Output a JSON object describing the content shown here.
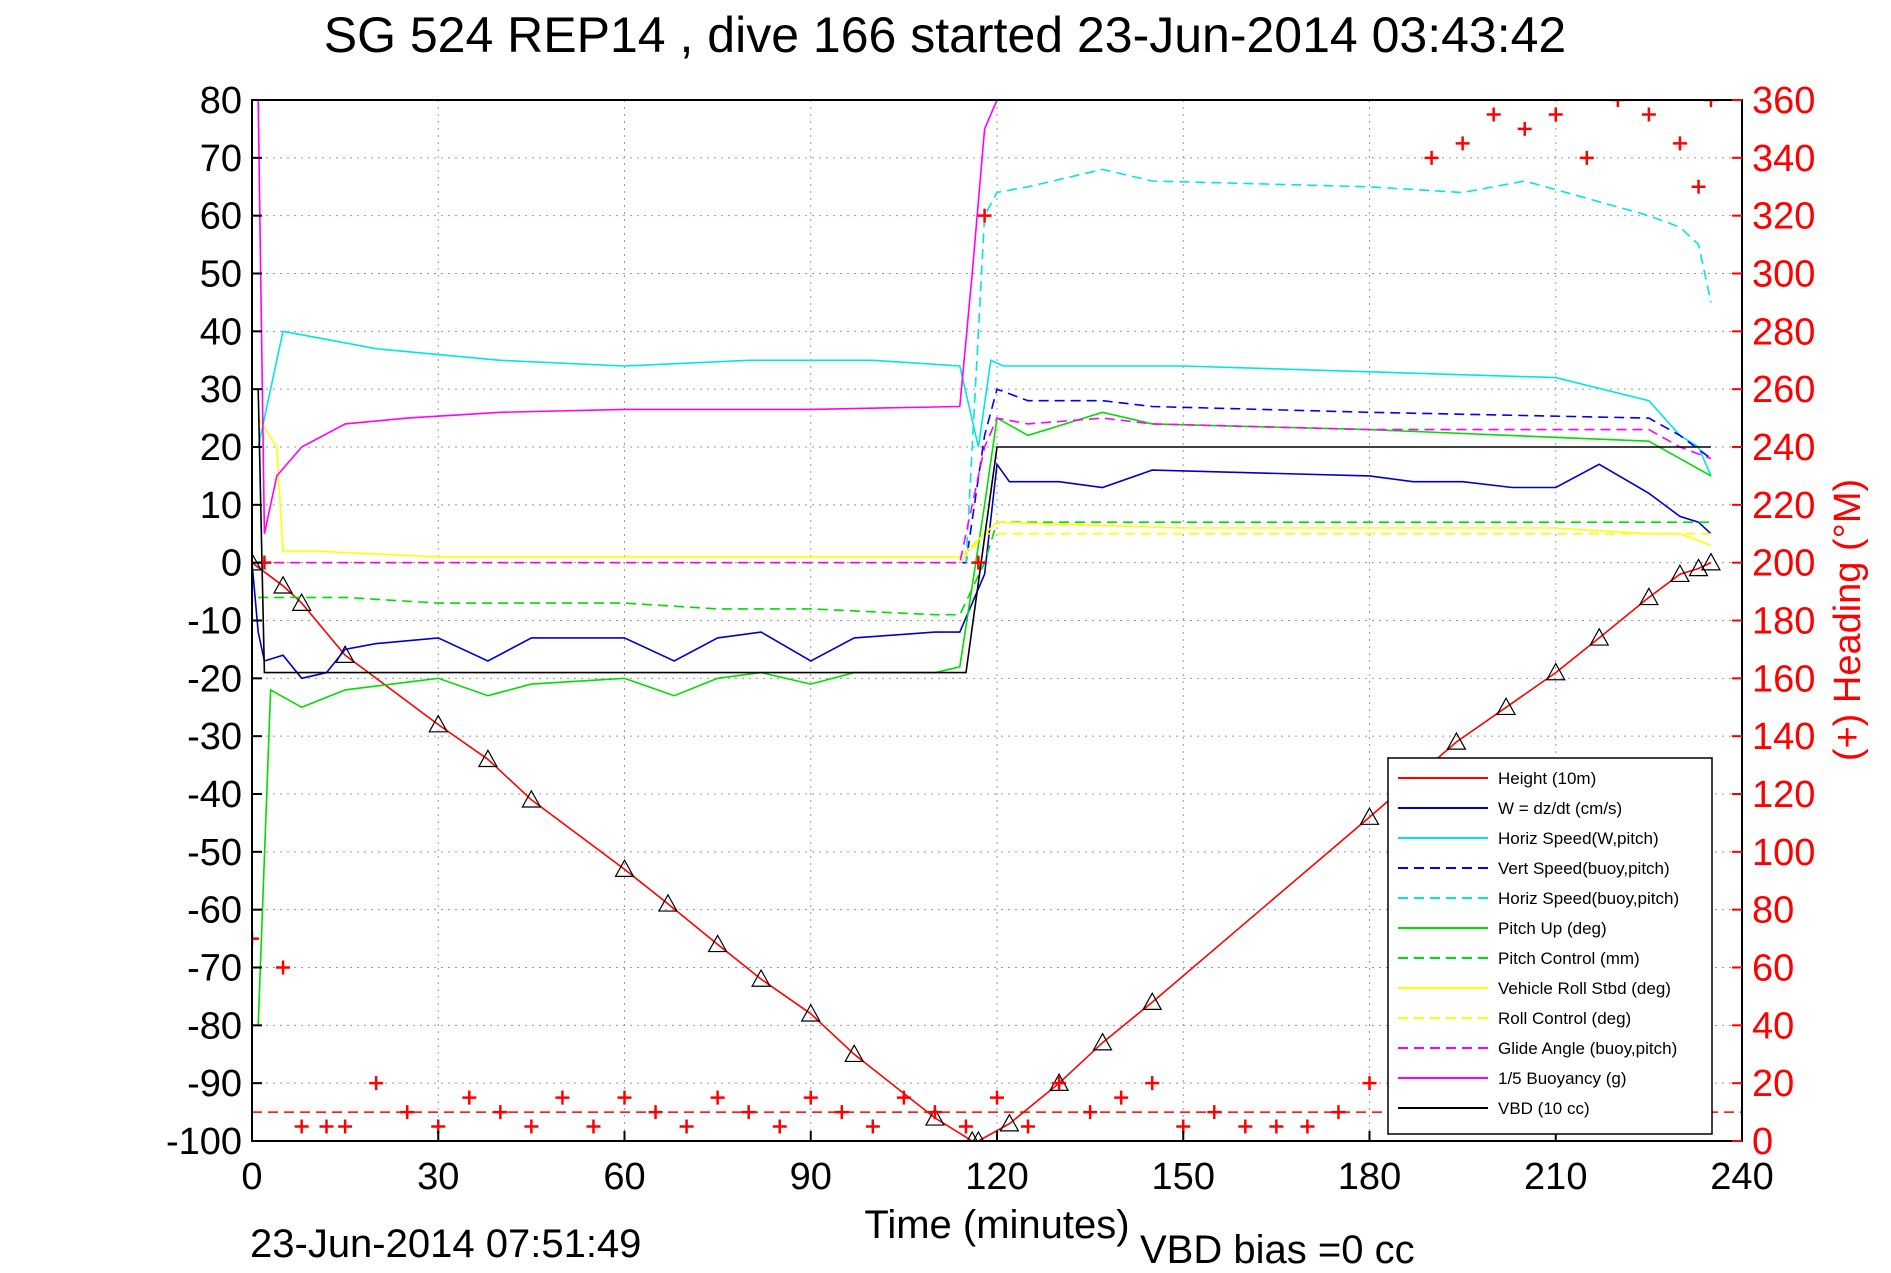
{
  "title": "SG 524   REP14  , dive 166 started 23-Jun-2014 03:43:42",
  "footer": {
    "timestamp": "23-Jun-2014 07:51:49",
    "vbd_bias": "VBD bias =0 cc"
  },
  "chart_data": {
    "type": "line",
    "title": "SG 524   REP14  , dive 166 started 23-Jun-2014 03:43:42",
    "xlabel": "Time (minutes)",
    "ylabel": "",
    "y2label": "(+) Heading (°M)",
    "xlim": [
      0,
      240
    ],
    "ylim": [
      -100,
      80
    ],
    "y2lim": [
      0,
      360
    ],
    "xticks": [
      0,
      30,
      60,
      90,
      120,
      150,
      180,
      210,
      240
    ],
    "yticks": [
      80,
      70,
      60,
      50,
      40,
      30,
      20,
      10,
      0,
      -10,
      -20,
      -30,
      -40,
      -50,
      -60,
      -70,
      -80,
      -90,
      -100
    ],
    "y2ticks": [
      360,
      340,
      320,
      300,
      280,
      260,
      240,
      220,
      200,
      180,
      160,
      140,
      120,
      100,
      80,
      60,
      40,
      20,
      0
    ],
    "grid": true,
    "legend_position": "bottom-right",
    "series": [
      {
        "name": "Height (10m)",
        "color": "#ff0000",
        "style": "solid",
        "marker": "triangle",
        "x": [
          0,
          5,
          8,
          15,
          30,
          38,
          45,
          60,
          67,
          75,
          82,
          90,
          97,
          110,
          116,
          117,
          122,
          130,
          137,
          145,
          180,
          194,
          202,
          210,
          217,
          225,
          230,
          233,
          235
        ],
        "y": [
          0,
          -4,
          -7,
          -16,
          -28,
          -34,
          -41,
          -53,
          -59,
          -66,
          -72,
          -78,
          -85,
          -96,
          -100,
          -100,
          -97,
          -90,
          -83,
          -76,
          -44,
          -31,
          -25,
          -19,
          -13,
          -6,
          -2,
          -1,
          0
        ]
      },
      {
        "name": "W = dz/dt (cm/s)",
        "color": "#0000cc",
        "style": "solid",
        "x": [
          0,
          1,
          2,
          5,
          8,
          12,
          15,
          20,
          30,
          38,
          45,
          60,
          68,
          75,
          82,
          90,
          97,
          110,
          114,
          118,
          120,
          122,
          130,
          137,
          145,
          180,
          187,
          195,
          203,
          210,
          217,
          225,
          230,
          233,
          235
        ],
        "y": [
          0,
          -12,
          -17,
          -16,
          -20,
          -19,
          -15,
          -14,
          -13,
          -17,
          -13,
          -13,
          -17,
          -13,
          -12,
          -17,
          -13,
          -12,
          -12,
          -2,
          17,
          14,
          14,
          13,
          16,
          15,
          14,
          14,
          13,
          13,
          17,
          12,
          8,
          7,
          5
        ]
      },
      {
        "name": "Horiz Speed(W,pitch)",
        "color": "#00e5e5",
        "style": "solid",
        "x": [
          1,
          5,
          20,
          40,
          60,
          80,
          100,
          114,
          117,
          119,
          121,
          130,
          150,
          180,
          210,
          225,
          230,
          233,
          235
        ],
        "y": [
          20,
          40,
          37,
          35,
          34,
          35,
          35,
          34,
          20,
          35,
          34,
          34,
          34,
          33,
          32,
          28,
          22,
          20,
          15
        ]
      },
      {
        "name": "Vert Speed(buoy,pitch)",
        "color": "#0000ff",
        "style": "dashed",
        "x": [
          1,
          115,
          118,
          120,
          125,
          137,
          145,
          180,
          225,
          230,
          235
        ],
        "y": [
          0,
          0,
          22,
          30,
          28,
          28,
          27,
          26,
          25,
          22,
          18
        ]
      },
      {
        "name": "Horiz Speed(buoy,pitch)",
        "color": "#00e5e5",
        "style": "dashed",
        "x": [
          115,
          118,
          120,
          125,
          137,
          145,
          180,
          195,
          205,
          215,
          225,
          230,
          233,
          235
        ],
        "y": [
          0,
          60,
          64,
          65,
          68,
          66,
          65,
          64,
          66,
          63,
          60,
          58,
          55,
          45
        ]
      },
      {
        "name": "Pitch Up (deg)",
        "color": "#00dd00",
        "style": "solid",
        "x": [
          1,
          3,
          8,
          15,
          30,
          38,
          45,
          60,
          68,
          75,
          82,
          90,
          97,
          110,
          114,
          118,
          120,
          125,
          137,
          145,
          180,
          225,
          230,
          235
        ],
        "y": [
          -80,
          -22,
          -25,
          -22,
          -20,
          -23,
          -21,
          -20,
          -23,
          -20,
          -19,
          -21,
          -19,
          -19,
          -18,
          10,
          25,
          22,
          26,
          24,
          23,
          21,
          18,
          15
        ]
      },
      {
        "name": "Pitch Control (mm)",
        "color": "#00dd00",
        "style": "dashed",
        "x": [
          1,
          15,
          30,
          45,
          60,
          75,
          90,
          110,
          114,
          118,
          120,
          180,
          230,
          235
        ],
        "y": [
          -6,
          -6,
          -7,
          -7,
          -7,
          -8,
          -8,
          -9,
          -9,
          0,
          7,
          7,
          7,
          7
        ]
      },
      {
        "name": "Vehicle Roll Stbd (deg)",
        "color": "#ffff00",
        "style": "solid",
        "x": [
          1,
          4,
          5,
          10,
          30,
          60,
          90,
          110,
          114,
          118,
          120,
          150,
          180,
          210,
          225,
          230,
          235
        ],
        "y": [
          25,
          20,
          2,
          2,
          1,
          1,
          1,
          1,
          1,
          5,
          7,
          6,
          6,
          6,
          5,
          5,
          3
        ]
      },
      {
        "name": "Roll Control (deg)",
        "color": "#ffff00",
        "style": "dashed",
        "x": [
          1,
          15,
          30,
          60,
          90,
          110,
          114,
          118,
          120,
          150,
          180,
          210,
          230,
          235
        ],
        "y": [
          0,
          0,
          0,
          0,
          0,
          0,
          0,
          5,
          5,
          5,
          5,
          5,
          5,
          5
        ]
      },
      {
        "name": "Glide Angle (buoy,pitch)",
        "color": "#ff00ff",
        "style": "dashed",
        "x": [
          1,
          114,
          118,
          120,
          125,
          137,
          145,
          180,
          225,
          230,
          235
        ],
        "y": [
          0,
          0,
          20,
          25,
          24,
          25,
          24,
          23,
          23,
          20,
          18
        ]
      },
      {
        "name": "1/5 Buoyancy (g)",
        "color": "#ff00ff",
        "style": "solid",
        "x": [
          1,
          2,
          4,
          8,
          15,
          25,
          40,
          60,
          90,
          114,
          116,
          118,
          120
        ],
        "y": [
          80,
          5,
          15,
          20,
          24,
          25,
          26,
          26.5,
          26.5,
          27,
          50,
          75,
          80
        ]
      },
      {
        "name": "VBD (10 cc)",
        "color": "#000000",
        "style": "solid",
        "x": [
          1,
          2,
          115,
          120,
          235
        ],
        "y": [
          30,
          -19,
          -19,
          20,
          20
        ]
      }
    ],
    "heading_series": {
      "name": "(+) Heading (°M)",
      "color": "#ff0000",
      "style": "markers",
      "marker": "+",
      "x": [
        0,
        2,
        5,
        8,
        12,
        15,
        20,
        25,
        30,
        35,
        40,
        45,
        50,
        55,
        60,
        65,
        70,
        75,
        80,
        85,
        90,
        95,
        100,
        105,
        110,
        115,
        117,
        118,
        120,
        125,
        130,
        135,
        140,
        145,
        150,
        155,
        160,
        165,
        170,
        175,
        180,
        185,
        190,
        195,
        200,
        205,
        210,
        215,
        220,
        225,
        230,
        233,
        235
      ],
      "y": [
        70,
        200,
        60,
        5,
        5,
        5,
        20,
        10,
        5,
        15,
        10,
        5,
        15,
        5,
        15,
        10,
        5,
        15,
        10,
        5,
        15,
        10,
        5,
        15,
        10,
        5,
        200,
        320,
        15,
        5,
        20,
        10,
        15,
        20,
        5,
        10,
        5,
        5,
        5,
        10,
        20,
        15,
        340,
        345,
        355,
        350,
        355,
        340,
        360,
        355,
        345,
        330,
        360
      ],
      "reference_line": 10
    }
  }
}
